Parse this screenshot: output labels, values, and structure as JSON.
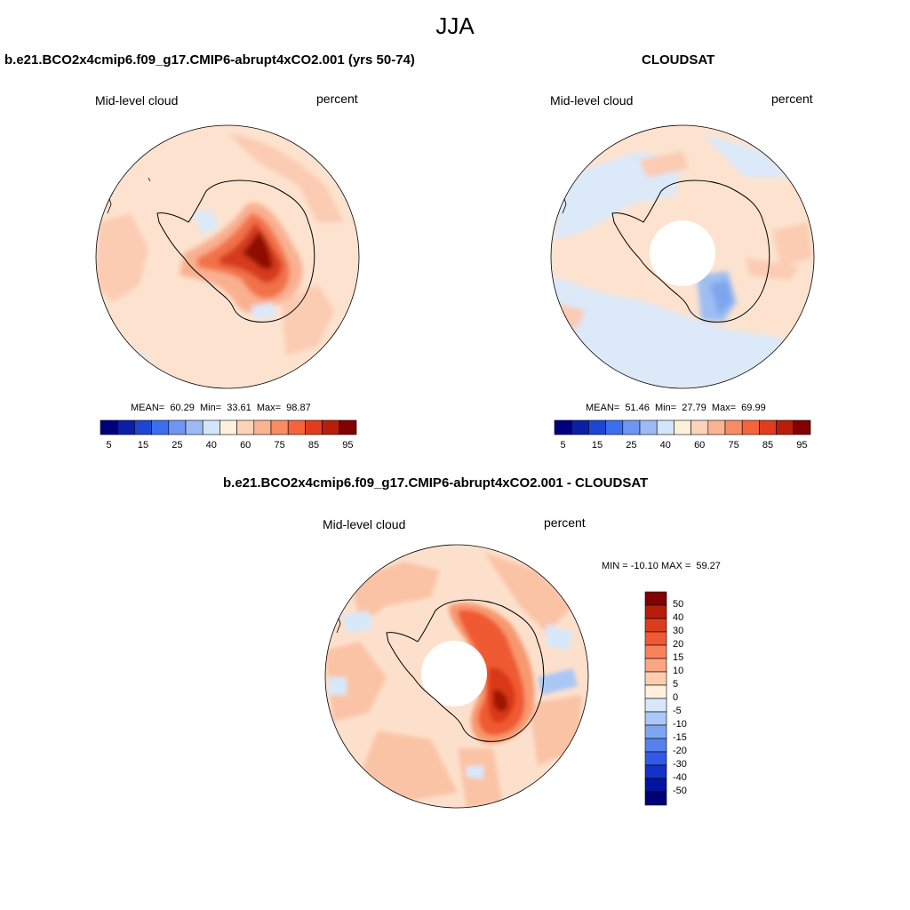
{
  "figure": {
    "title": "JJA"
  },
  "panels": {
    "model": {
      "title": "b.e21.BCO2x4cmip6.f09_g17.CMIP6-abrupt4xCO2.001 (yrs 50-74)",
      "left_label": "Mid-level cloud",
      "right_label": "percent",
      "stats_text": "MEAN=  60.29  Min=  33.61  Max=  98.87",
      "mean": 60.29,
      "min": 33.61,
      "max": 98.87
    },
    "obs": {
      "title": "CLOUDSAT",
      "left_label": "Mid-level cloud",
      "right_label": "percent",
      "stats_text": "MEAN=  51.46  Min=  27.79  Max=  69.99",
      "mean": 51.46,
      "min": 27.79,
      "max": 69.99
    },
    "diff": {
      "title": "b.e21.BCO2x4cmip6.f09_g17.CMIP6-abrupt4xCO2.001 - CLOUDSAT",
      "left_label": "Mid-level cloud",
      "right_label": "percent",
      "stats_text": "MIN = -10.10 MAX =  59.27",
      "min": -10.1,
      "max": 59.27
    }
  },
  "colorbars": {
    "abs": {
      "colors": [
        "#00007f",
        "#0a1ea8",
        "#1e46d2",
        "#3c6ef0",
        "#6e96f0",
        "#9cbaf5",
        "#d2e6fa",
        "#fff0dc",
        "#fcd2b9",
        "#fab491",
        "#f88c64",
        "#f5643c",
        "#e13c1e",
        "#b91e0a",
        "#820000"
      ],
      "tick_labels": [
        "5",
        "15",
        "25",
        "40",
        "60",
        "75",
        "85",
        "95"
      ]
    },
    "diff": {
      "colors": [
        "#820000",
        "#b41e0a",
        "#dc3c1e",
        "#f05a32",
        "#fa825a",
        "#fca582",
        "#fdcdaf",
        "#fff0dc",
        "#d7e8fa",
        "#aac8f5",
        "#7ea6f2",
        "#5682ee",
        "#325ae6",
        "#1432c8",
        "#0014a0",
        "#000078"
      ],
      "tick_labels": [
        "50",
        "40",
        "30",
        "20",
        "15",
        "10",
        "5",
        "0",
        "-5",
        "-10",
        "-15",
        "-20",
        "-30",
        "-40",
        "-50"
      ]
    }
  }
}
